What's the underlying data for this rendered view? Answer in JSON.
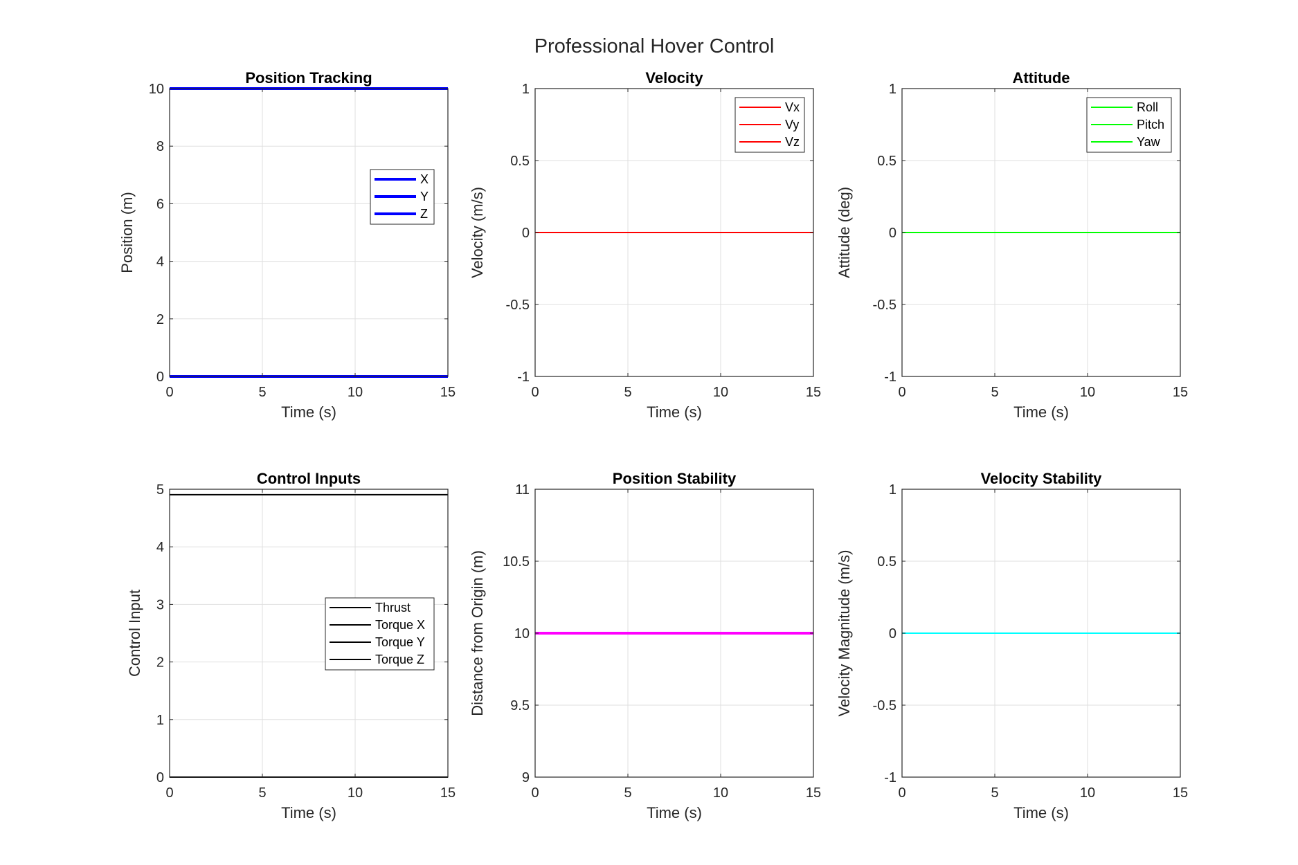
{
  "figure_title": "Professional Hover Control",
  "colors": {
    "axes": "#262626",
    "grid": "#dfdfdf",
    "blue": "#0000ff",
    "red": "#ff0000",
    "green": "#00ff00",
    "black": "#000000",
    "magenta": "#ff00ff",
    "cyan": "#00ffff"
  },
  "chart_data": [
    {
      "id": "position",
      "type": "line",
      "title": "Position Tracking",
      "xlabel": "Time (s)",
      "ylabel": "Position (m)",
      "xlim": [
        0,
        15
      ],
      "ylim": [
        0,
        10
      ],
      "xticks": [
        0,
        5,
        10,
        15
      ],
      "yticks": [
        0,
        2,
        4,
        6,
        8,
        10
      ],
      "grid": true,
      "legend": "middle-right",
      "series": [
        {
          "name": "X",
          "color": "#0000ff",
          "x": [
            0,
            15
          ],
          "y": [
            0,
            0
          ],
          "width": "thick"
        },
        {
          "name": "Y",
          "color": "#0000ff",
          "x": [
            0,
            15
          ],
          "y": [
            0,
            0
          ],
          "width": "thick"
        },
        {
          "name": "Z",
          "color": "#0000ff",
          "x": [
            0,
            15
          ],
          "y": [
            10,
            10
          ],
          "width": "thick"
        }
      ]
    },
    {
      "id": "velocity",
      "type": "line",
      "title": "Velocity",
      "xlabel": "Time (s)",
      "ylabel": "Velocity (m/s)",
      "xlim": [
        0,
        15
      ],
      "ylim": [
        -1,
        1
      ],
      "xticks": [
        0,
        5,
        10,
        15
      ],
      "yticks": [
        -1,
        -0.5,
        0,
        0.5,
        1
      ],
      "grid": true,
      "legend": "top-right",
      "series": [
        {
          "name": "Vx",
          "color": "#ff0000",
          "x": [
            0,
            15
          ],
          "y": [
            0,
            0
          ],
          "width": "normal"
        },
        {
          "name": "Vy",
          "color": "#ff0000",
          "x": [
            0,
            15
          ],
          "y": [
            0,
            0
          ],
          "width": "normal"
        },
        {
          "name": "Vz",
          "color": "#ff0000",
          "x": [
            0,
            15
          ],
          "y": [
            0,
            0
          ],
          "width": "normal"
        }
      ]
    },
    {
      "id": "attitude",
      "type": "line",
      "title": "Attitude",
      "xlabel": "Time (s)",
      "ylabel": "Attitude (deg)",
      "xlim": [
        0,
        15
      ],
      "ylim": [
        -1,
        1
      ],
      "xticks": [
        0,
        5,
        10,
        15
      ],
      "yticks": [
        -1,
        -0.5,
        0,
        0.5,
        1
      ],
      "grid": true,
      "legend": "top-right",
      "series": [
        {
          "name": "Roll",
          "color": "#00ff00",
          "x": [
            0,
            15
          ],
          "y": [
            0,
            0
          ],
          "width": "normal"
        },
        {
          "name": "Pitch",
          "color": "#00ff00",
          "x": [
            0,
            15
          ],
          "y": [
            0,
            0
          ],
          "width": "normal"
        },
        {
          "name": "Yaw",
          "color": "#00ff00",
          "x": [
            0,
            15
          ],
          "y": [
            0,
            0
          ],
          "width": "normal"
        }
      ]
    },
    {
      "id": "control",
      "type": "line",
      "title": "Control Inputs",
      "xlabel": "Time (s)",
      "ylabel": "Control Input",
      "xlim": [
        0,
        15
      ],
      "ylim": [
        0,
        5
      ],
      "xticks": [
        0,
        5,
        10,
        15
      ],
      "yticks": [
        0,
        1,
        2,
        3,
        4,
        5
      ],
      "grid": true,
      "legend": "middle-right",
      "series": [
        {
          "name": "Thrust",
          "color": "#000000",
          "x": [
            0,
            15
          ],
          "y": [
            4.905,
            4.905
          ],
          "width": "normal"
        },
        {
          "name": "Torque X",
          "color": "#000000",
          "x": [
            0,
            15
          ],
          "y": [
            0,
            0
          ],
          "width": "normal"
        },
        {
          "name": "Torque Y",
          "color": "#000000",
          "x": [
            0,
            15
          ],
          "y": [
            0,
            0
          ],
          "width": "normal"
        },
        {
          "name": "Torque Z",
          "color": "#000000",
          "x": [
            0,
            15
          ],
          "y": [
            0,
            0
          ],
          "width": "normal"
        }
      ]
    },
    {
      "id": "posstab",
      "type": "line",
      "title": "Position Stability",
      "xlabel": "Time (s)",
      "ylabel": "Distance from Origin (m)",
      "xlim": [
        0,
        15
      ],
      "ylim": [
        9,
        11
      ],
      "xticks": [
        0,
        5,
        10,
        15
      ],
      "yticks": [
        9,
        9.5,
        10,
        10.5,
        11
      ],
      "grid": true,
      "series": [
        {
          "color": "#ff00ff",
          "x": [
            0,
            15
          ],
          "y": [
            10,
            10
          ],
          "width": "thick"
        }
      ]
    },
    {
      "id": "velstab",
      "type": "line",
      "title": "Velocity Stability",
      "xlabel": "Time (s)",
      "ylabel": "Velocity Magnitude (m/s)",
      "xlim": [
        0,
        15
      ],
      "ylim": [
        -1,
        1
      ],
      "xticks": [
        0,
        5,
        10,
        15
      ],
      "yticks": [
        -1,
        -0.5,
        0,
        0.5,
        1
      ],
      "grid": true,
      "series": [
        {
          "color": "#00ffff",
          "x": [
            0,
            15
          ],
          "y": [
            0,
            0
          ],
          "width": "normal"
        }
      ]
    }
  ]
}
